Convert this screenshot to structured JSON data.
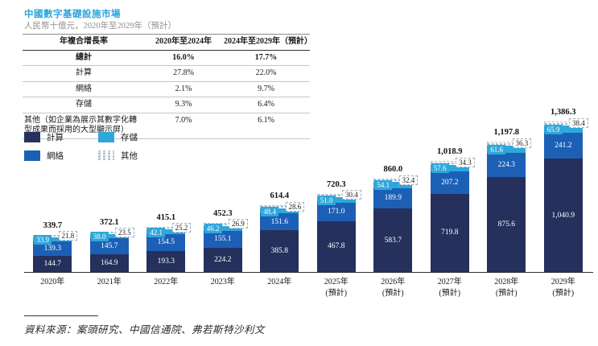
{
  "header": {
    "title": "中國數字基礎設施市場",
    "subtitle": "人民幣十億元，2020年至2029年（預計）"
  },
  "cagr_table": {
    "headers": [
      "年複合增長率",
      "2020年至2024年",
      "2024年至2029年（預計）"
    ],
    "rows": [
      {
        "label": "總計",
        "v1": "16.0%",
        "v2": "17.7%",
        "bold": true
      },
      {
        "label": "計算",
        "v1": "27.8%",
        "v2": "22.0%"
      },
      {
        "label": "網絡",
        "v1": "2.1%",
        "v2": "9.7%"
      },
      {
        "label": "存儲",
        "v1": "9.3%",
        "v2": "6.4%"
      },
      {
        "label": "其他（如企業為展示其數字化轉型成果而採用的大型顯示屏）",
        "v1": "7.0%",
        "v2": "6.1%",
        "wrap": true
      }
    ]
  },
  "legend": [
    {
      "label": "計算",
      "key": "compute"
    },
    {
      "label": "存儲",
      "key": "storage"
    },
    {
      "label": "網絡",
      "key": "network"
    },
    {
      "label": "其他",
      "key": "other"
    }
  ],
  "colors": {
    "title_accent": "#2AA5DC",
    "compute": "#26305C",
    "network": "#1C60B6",
    "storage": "#2FA7DB",
    "other_dash": "#AEBDCF"
  },
  "chart_data": {
    "type": "bar",
    "variant": "stacked",
    "title": "中國數字基礎設施市場",
    "unit": "人民幣十億元",
    "categories": [
      [
        "2020年"
      ],
      [
        "2021年"
      ],
      [
        "2022年"
      ],
      [
        "2023年"
      ],
      [
        "2024年"
      ],
      [
        "2025年",
        "(預計)"
      ],
      [
        "2026年",
        "(預計)"
      ],
      [
        "2027年",
        "(預計)"
      ],
      [
        "2028年",
        "(預計)"
      ],
      [
        "2029年",
        "(預計)"
      ]
    ],
    "series": [
      {
        "name": "計算",
        "key": "compute",
        "values": [
          "144.7",
          "164.9",
          "193.3",
          "224.2",
          "385.8",
          "467.8",
          "583.7",
          "719.8",
          "875.6",
          "1,040.9"
        ]
      },
      {
        "name": "網絡",
        "key": "network",
        "values": [
          "139.3",
          "145.7",
          "154.5",
          "155.1",
          "151.6",
          "171.0",
          "189.9",
          "207.2",
          "224.3",
          "241.2"
        ]
      },
      {
        "name": "存儲",
        "key": "storage",
        "values": [
          "33.9",
          "38.0",
          "42.1",
          "46.2",
          "48.4",
          "51.0",
          "54.1",
          "57.6",
          "61.6",
          "65.9"
        ]
      },
      {
        "name": "其他",
        "key": "other",
        "values": [
          "21.8",
          "23.5",
          "25.2",
          "26.9",
          "28.6",
          "30.4",
          "32.4",
          "34.3",
          "36.3",
          "38.4"
        ]
      }
    ],
    "totals": [
      "339.7",
      "372.1",
      "415.1",
      "452.3",
      "614.4",
      "720.3",
      "860.0",
      "1,018.9",
      "1,197.8",
      "1,386.3"
    ],
    "ylim": [
      0,
      1400
    ],
    "grid": false,
    "legend_position": "left-middle"
  },
  "source": {
    "text": "資料來源：案頭研究、中國信通院、弗若斯特沙利文"
  }
}
